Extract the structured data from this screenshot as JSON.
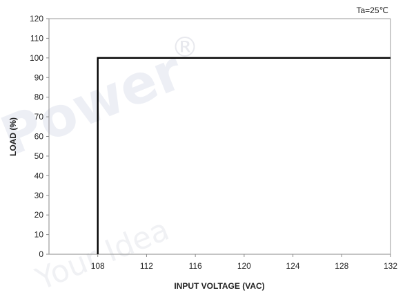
{
  "chart_data": {
    "type": "line",
    "title": "",
    "annotation": "Ta=25℃",
    "xlabel": "INPUT VOLTAGE (VAC)",
    "ylabel": "LOAD (%)",
    "xlim": [
      104,
      132
    ],
    "ylim": [
      0,
      120
    ],
    "x_ticks": [
      108,
      112,
      116,
      120,
      124,
      128,
      132
    ],
    "y_ticks": [
      0,
      10,
      20,
      30,
      40,
      50,
      60,
      70,
      80,
      90,
      100,
      110,
      120
    ],
    "grid": false,
    "legend": "none",
    "line_color": "#000000",
    "series": [
      {
        "x": [
          108,
          108,
          132
        ],
        "y": [
          0,
          100,
          100
        ]
      }
    ],
    "watermark": [
      "Power",
      "Your Idea",
      "®"
    ]
  }
}
